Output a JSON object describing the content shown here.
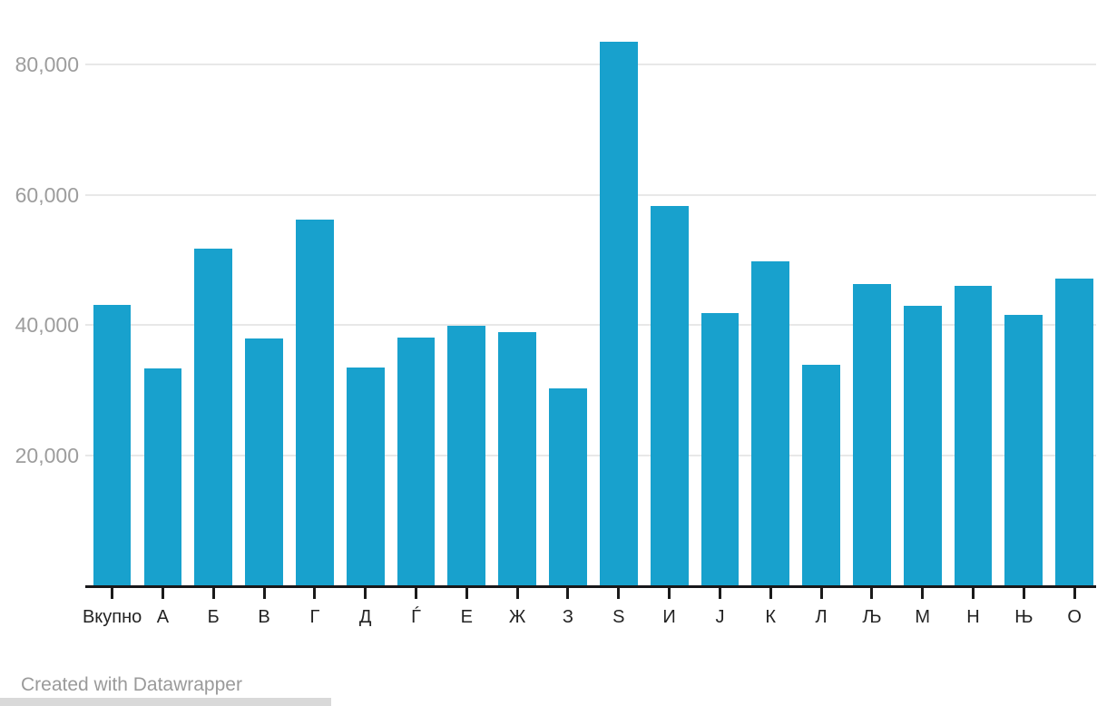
{
  "chart_data": {
    "type": "bar",
    "categories": [
      "Вкупно",
      "А",
      "Б",
      "В",
      "Г",
      "Д",
      "Ѓ",
      "Е",
      "Ж",
      "З",
      "Ѕ",
      "И",
      "Ј",
      "К",
      "Л",
      "Љ",
      "М",
      "Н",
      "Њ",
      "О"
    ],
    "values": [
      43100,
      33400,
      51800,
      37900,
      56200,
      33500,
      38100,
      39900,
      38900,
      30300,
      83500,
      58300,
      41800,
      49800,
      34000,
      46300,
      43000,
      46100,
      41600,
      47200
    ],
    "title": "",
    "xlabel": "",
    "ylabel": "",
    "ylim": [
      0,
      87000
    ],
    "yticks": [
      20000,
      40000,
      60000,
      80000
    ],
    "ytick_labels": [
      "20,000",
      "40,000",
      "60,000",
      "80,000"
    ],
    "grid": true,
    "legend": false,
    "bar_color": "#18a1cd"
  },
  "colors": {
    "bar": "#18a1cd",
    "gridline": "#e8e8e8",
    "axis_line": "#18181a",
    "tick": "#1a1a1a",
    "y_label": "#9d9d9d",
    "x_label": "#232323",
    "credit": "#9a9a9a",
    "bottom_strip": "#d9d9d9"
  },
  "footer": {
    "credit": "Created with Datawrapper"
  }
}
